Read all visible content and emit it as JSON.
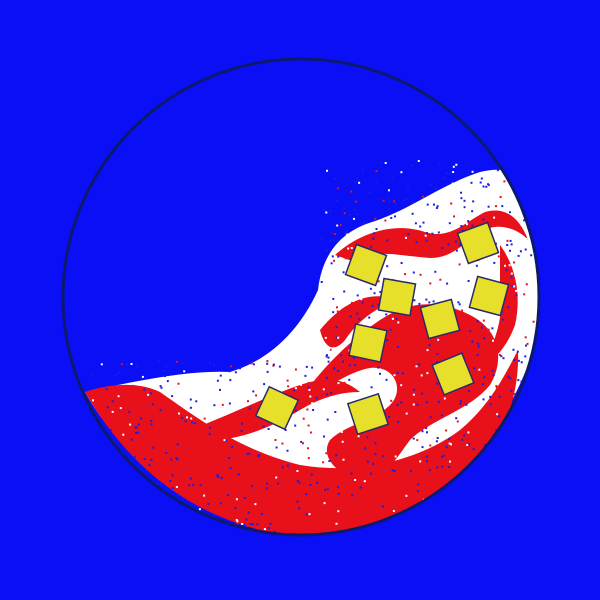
{
  "scene": {
    "description_free": true,
    "colors": {
      "background": "#0a0ff5",
      "container_outline": "#0b1a6e",
      "fluid_red": "#e8101a",
      "fluid_white": "#ffffff",
      "particle_blue": "#1a1fe0",
      "block_fill": "#e6e02a",
      "block_outline": "#2a2a6a"
    },
    "block_count": 10
  }
}
